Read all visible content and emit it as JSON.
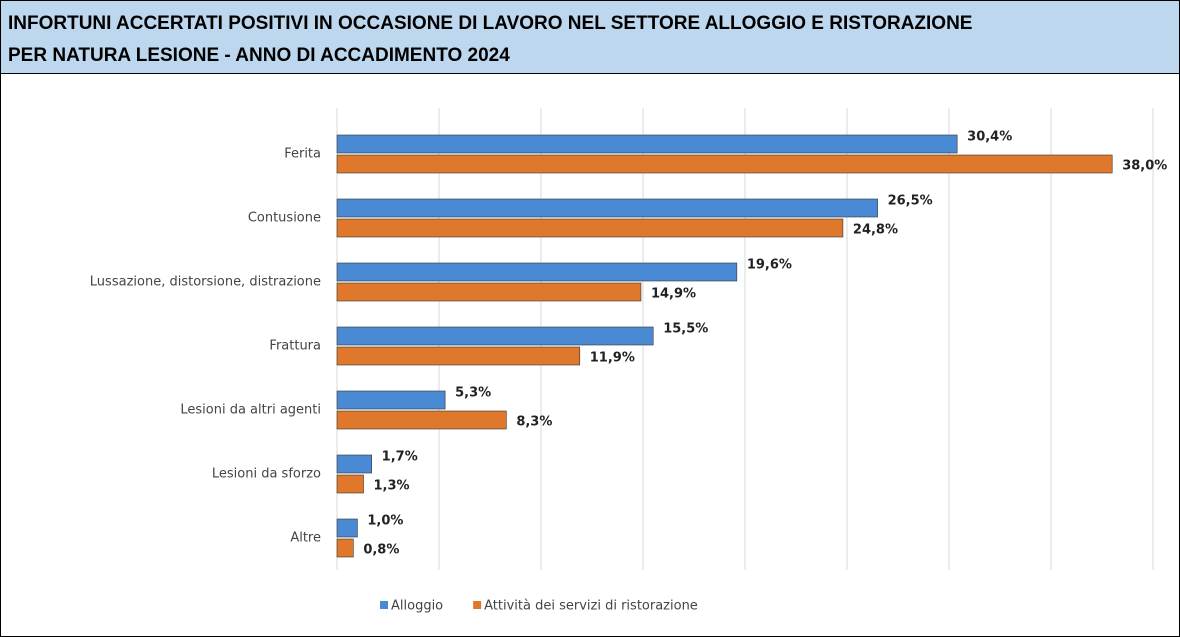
{
  "chart_data": {
    "type": "hbar",
    "title": [
      "INFORTUNI ACCERTATI POSITIVI IN OCCASIONE DI LAVORO NEL SETTORE ALLOGGIO E RISTORAZIONE",
      "PER NATURA LESIONE - ANNO DI ACCADIMENTO 2024"
    ],
    "categories": [
      "Ferita",
      "Contusione",
      "Lussazione, distorsione, distrazione",
      "Frattura",
      "Lesioni da altri agenti",
      "Lesioni da sforzo",
      "Altre"
    ],
    "series": [
      {
        "name": "Alloggio",
        "color": "#4a8ad4",
        "values": [
          30.4,
          26.5,
          19.6,
          15.5,
          5.3,
          1.7,
          1.0
        ],
        "value_labels": [
          "30,4%",
          "26,5%",
          "19,6%",
          "15,5%",
          "5,3%",
          "1,7%",
          "1,0%"
        ]
      },
      {
        "name": "Attività dei servizi di ristorazione",
        "color": "#e0782c",
        "values": [
          38.0,
          24.8,
          14.9,
          11.9,
          8.3,
          1.3,
          0.8
        ],
        "value_labels": [
          "38,0%",
          "24,8%",
          "14,9%",
          "11,9%",
          "8,3%",
          "1,3%",
          "0,8%"
        ]
      }
    ],
    "xlim": [
      0,
      40
    ],
    "xticks": [
      0,
      5,
      10,
      15,
      20,
      25,
      30,
      35,
      40
    ],
    "grid": true,
    "legend": "bottom"
  }
}
